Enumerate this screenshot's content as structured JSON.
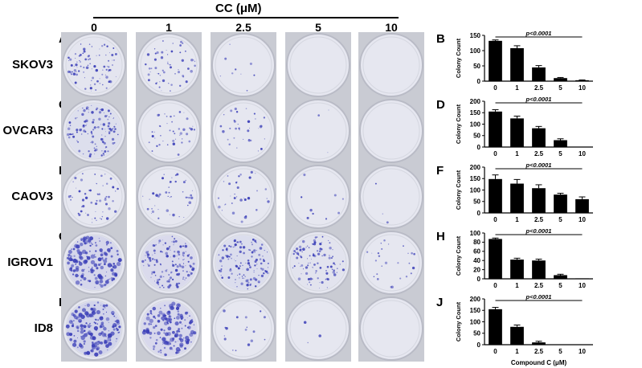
{
  "header": {
    "title": "CC (μM)"
  },
  "concentrations": [
    "0",
    "1",
    "2.5",
    "5",
    "10"
  ],
  "rows": [
    {
      "cell_line": "SKOV3",
      "photo_label": "A",
      "chart_label": "B",
      "colony_density": [
        0.55,
        0.35,
        0.05,
        0.0,
        0.0
      ]
    },
    {
      "cell_line": "OVCAR3",
      "photo_label": "C",
      "chart_label": "D",
      "colony_density": [
        0.7,
        0.25,
        0.2,
        0.02,
        0.0
      ]
    },
    {
      "cell_line": "CAOV3",
      "photo_label": "E",
      "chart_label": "F",
      "colony_density": [
        0.35,
        0.25,
        0.2,
        0.05,
        0.02
      ]
    },
    {
      "cell_line": "IGROV1",
      "photo_label": "G",
      "chart_label": "H",
      "colony_density": [
        0.9,
        0.8,
        0.75,
        0.6,
        0.15
      ]
    },
    {
      "cell_line": "ID8",
      "photo_label": "I",
      "chart_label": "J",
      "colony_density": [
        1.0,
        0.85,
        0.1,
        0.02,
        0.0
      ]
    }
  ],
  "colors": {
    "colony": "#3b3fb8",
    "well_bg": "#e6e7f0",
    "bar": "#000000"
  },
  "chart_data": [
    {
      "type": "bar",
      "categories": [
        "0",
        "1",
        "2.5",
        "5",
        "10"
      ],
      "values": [
        132,
        108,
        45,
        10,
        3
      ],
      "errors": [
        3,
        8,
        6,
        2,
        1
      ],
      "ylabel": "Colony Count",
      "ylim": [
        0,
        150
      ],
      "yticks": [
        0,
        50,
        100,
        150
      ],
      "annotation": "p<0.0001"
    },
    {
      "type": "bar",
      "categories": [
        "0",
        "1",
        "2.5",
        "5",
        "10"
      ],
      "values": [
        155,
        125,
        82,
        30,
        0
      ],
      "errors": [
        8,
        10,
        8,
        6,
        0
      ],
      "ylabel": "Colony Count",
      "ylim": [
        0,
        200
      ],
      "yticks": [
        0,
        50,
        100,
        150,
        200
      ],
      "annotation": "p<0.0001"
    },
    {
      "type": "bar",
      "categories": [
        "0",
        "1",
        "2.5",
        "5",
        "10"
      ],
      "values": [
        148,
        128,
        108,
        80,
        60
      ],
      "errors": [
        18,
        18,
        15,
        6,
        10
      ],
      "ylabel": "Colony Count",
      "ylim": [
        0,
        200
      ],
      "yticks": [
        0,
        50,
        100,
        150,
        200
      ],
      "annotation": "p<0.0001"
    },
    {
      "type": "bar",
      "categories": [
        "0",
        "1",
        "2.5",
        "5",
        "10"
      ],
      "values": [
        87,
        42,
        40,
        8,
        1
      ],
      "errors": [
        2,
        3,
        3,
        2,
        0
      ],
      "ylabel": "Colony Count",
      "ylim": [
        0,
        100
      ],
      "yticks": [
        0,
        20,
        40,
        60,
        80,
        100
      ],
      "annotation": "p<0.0001"
    },
    {
      "type": "bar",
      "categories": [
        "0",
        "1",
        "2.5",
        "5",
        "10"
      ],
      "values": [
        155,
        78,
        10,
        0,
        0
      ],
      "errors": [
        8,
        8,
        5,
        0,
        0
      ],
      "ylabel": "Colony Count",
      "ylim": [
        0,
        200
      ],
      "yticks": [
        0,
        50,
        100,
        150,
        200
      ],
      "annotation": "p<0.0001",
      "xlabel": "Compound C (μM)"
    }
  ]
}
